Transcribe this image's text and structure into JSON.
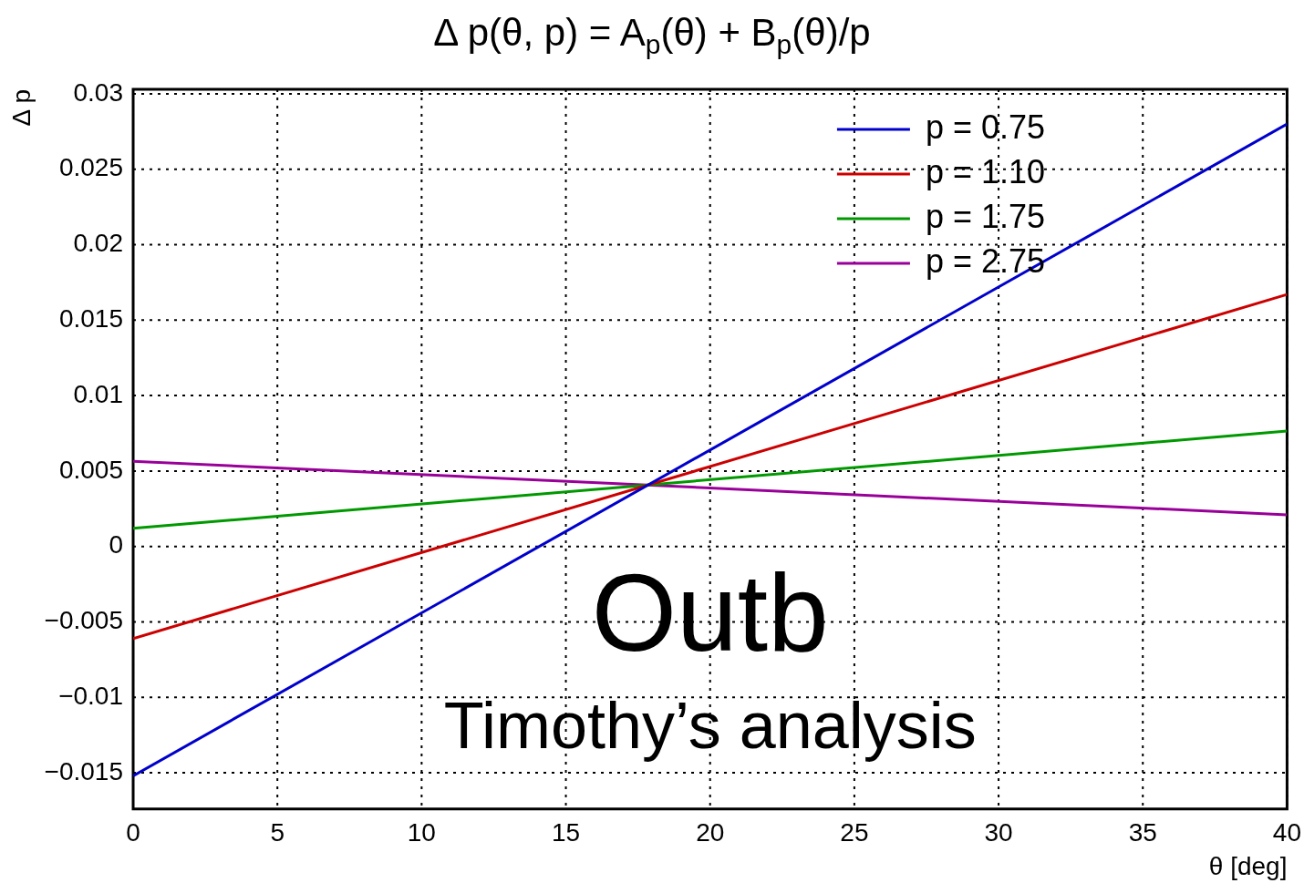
{
  "chart_data": {
    "type": "line",
    "title": "Δ p(θ, p) = A$_{p}$(θ) + B$_{p}$(θ)/p",
    "xlabel": "θ [deg]",
    "ylabel": "Δ p",
    "x": [
      0,
      40
    ],
    "series": [
      {
        "name": "p = 0.75",
        "color": "#0000cc",
        "values": [
          -0.0152,
          0.028
        ]
      },
      {
        "name": "p = 1.10",
        "color": "#cc0000",
        "values": [
          -0.0061,
          0.0167
        ]
      },
      {
        "name": "p = 1.75",
        "color": "#009900",
        "values": [
          0.0012,
          0.00765
        ]
      },
      {
        "name": "p = 2.75",
        "color": "#990099",
        "values": [
          0.00565,
          0.0021
        ]
      }
    ],
    "xlim": [
      0,
      40
    ],
    "xticks": [
      0,
      5,
      10,
      15,
      20,
      25,
      30,
      35,
      40
    ],
    "ylim": [
      -0.0174,
      0.0303
    ],
    "yticks": [
      {
        "value": -0.015,
        "label": "−0.015"
      },
      {
        "value": -0.01,
        "label": "−0.01"
      },
      {
        "value": -0.005,
        "label": "−0.005"
      },
      0,
      0.005,
      0.01,
      0.015,
      0.02,
      0.025,
      0.03
    ],
    "grid": true,
    "legend": "top right",
    "marker": "none",
    "line_style": "solid",
    "annotations": [
      "Outb",
      "Timothy’s analysis"
    ]
  }
}
